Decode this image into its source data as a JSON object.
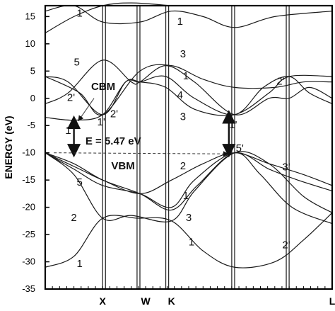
{
  "chart_data": {
    "type": "line",
    "ylabel": "ENERGY (eV)",
    "ylim": [
      -35,
      17
    ],
    "yticks": [
      15,
      10,
      5,
      0,
      -5,
      -10,
      -15,
      -20,
      -25,
      -30,
      -35
    ],
    "xlim": [
      0,
      1
    ],
    "xticks": [
      {
        "label": "X",
        "x": 0.2
      },
      {
        "label": "W",
        "x": 0.35
      },
      {
        "label": "K",
        "x": 0.44
      },
      {
        "label": "L",
        "x": 1.0
      }
    ],
    "symmetry_lines_x": [
      0.2,
      0.21,
      0.32,
      0.33,
      0.42,
      0.43,
      0.65,
      0.66,
      0.84,
      0.85
    ],
    "series": [
      {
        "values": [
          [
            0,
            -31
          ],
          [
            0.1,
            -29
          ],
          [
            0.2,
            -22
          ],
          [
            0.32,
            -22
          ],
          [
            0.44,
            -22.5
          ],
          [
            0.55,
            -28
          ],
          [
            0.66,
            -31
          ],
          [
            0.8,
            -30
          ],
          [
            0.9,
            -26
          ],
          [
            1.0,
            -21
          ]
        ]
      },
      {
        "values": [
          [
            0,
            -10
          ],
          [
            0.1,
            -14
          ],
          [
            0.2,
            -22
          ],
          [
            0.3,
            -21.5
          ],
          [
            0.44,
            -22.5
          ],
          [
            0.52,
            -17
          ],
          [
            0.66,
            -10
          ],
          [
            0.78,
            -12
          ],
          [
            0.9,
            -18
          ],
          [
            1.0,
            -21
          ]
        ]
      },
      {
        "values": [
          [
            0,
            -10
          ],
          [
            0.12,
            -13
          ],
          [
            0.2,
            -15
          ],
          [
            0.33,
            -17.5
          ],
          [
            0.44,
            -15
          ],
          [
            0.55,
            -12
          ],
          [
            0.66,
            -10
          ],
          [
            0.78,
            -12
          ],
          [
            0.9,
            -14
          ],
          [
            1.0,
            -16
          ]
        ]
      },
      {
        "values": [
          [
            0,
            -10
          ],
          [
            0.1,
            -13
          ],
          [
            0.2,
            -16
          ],
          [
            0.33,
            -17.5
          ],
          [
            0.44,
            -20
          ],
          [
            0.52,
            -15
          ],
          [
            0.66,
            -10
          ],
          [
            0.78,
            -13
          ],
          [
            0.88,
            -15
          ],
          [
            1.0,
            -17
          ]
        ]
      },
      {
        "values": [
          [
            0,
            -10
          ],
          [
            0.1,
            -12
          ],
          [
            0.2,
            -15
          ],
          [
            0.33,
            -17.5
          ],
          [
            0.44,
            -20.5
          ],
          [
            0.53,
            -16
          ],
          [
            0.66,
            -10
          ],
          [
            0.75,
            -14
          ],
          [
            0.86,
            -20
          ],
          [
            1.0,
            -23
          ]
        ]
      },
      {
        "values": [
          [
            0,
            -3.5
          ],
          [
            0.1,
            -4
          ],
          [
            0.2,
            -3
          ],
          [
            0.28,
            3
          ],
          [
            0.33,
            3
          ],
          [
            0.42,
            2
          ],
          [
            0.52,
            -2
          ],
          [
            0.66,
            -3
          ],
          [
            0.78,
            1
          ],
          [
            0.85,
            4
          ],
          [
            1.0,
            4
          ]
        ]
      },
      {
        "values": [
          [
            0,
            -1
          ],
          [
            0.08,
            1
          ],
          [
            0.2,
            7
          ],
          [
            0.3,
            3
          ],
          [
            0.33,
            3
          ],
          [
            0.42,
            6
          ],
          [
            0.52,
            3
          ],
          [
            0.66,
            -3
          ],
          [
            0.78,
            0
          ],
          [
            0.85,
            0
          ],
          [
            0.92,
            2
          ],
          [
            1.0,
            0
          ]
        ]
      },
      {
        "values": [
          [
            0,
            4
          ],
          [
            0.08,
            3
          ],
          [
            0.2,
            -3
          ],
          [
            0.28,
            3
          ],
          [
            0.33,
            3
          ],
          [
            0.42,
            4
          ],
          [
            0.52,
            0
          ],
          [
            0.66,
            -3
          ],
          [
            0.76,
            2
          ],
          [
            0.85,
            4
          ],
          [
            0.92,
            1
          ],
          [
            1.0,
            -1
          ]
        ]
      },
      {
        "values": [
          [
            0,
            4
          ],
          [
            0.12,
            1
          ],
          [
            0.2,
            -3
          ],
          [
            0.33,
            5
          ],
          [
            0.44,
            6
          ],
          [
            0.55,
            3.5
          ],
          [
            0.66,
            2
          ],
          [
            0.8,
            2
          ],
          [
            0.9,
            3
          ],
          [
            1.0,
            3
          ]
        ]
      },
      {
        "values": [
          [
            0,
            16
          ],
          [
            0.1,
            17
          ],
          [
            0.2,
            14
          ],
          [
            0.33,
            14
          ],
          [
            0.44,
            16
          ],
          [
            0.55,
            15
          ],
          [
            0.66,
            13
          ],
          [
            0.8,
            15
          ],
          [
            1.0,
            16
          ]
        ]
      },
      {
        "values": [
          [
            0,
            12
          ],
          [
            0.1,
            15
          ],
          [
            0.2,
            17
          ],
          [
            0.3,
            17.5
          ],
          [
            0.44,
            17
          ]
        ]
      }
    ],
    "band_labels": [
      {
        "text": "1",
        "x": 0.12,
        "y": 15
      },
      {
        "text": "1",
        "x": 0.47,
        "y": 13.5
      },
      {
        "text": "5",
        "x": 0.11,
        "y": 6
      },
      {
        "text": "3",
        "x": 0.48,
        "y": 7.5
      },
      {
        "text": "1",
        "x": 0.49,
        "y": 3.5
      },
      {
        "text": "2'",
        "x": 0.09,
        "y": -0.5
      },
      {
        "text": "4",
        "x": 0.47,
        "y": 0
      },
      {
        "text": "3",
        "x": 0.48,
        "y": -4
      },
      {
        "text": "1",
        "x": 0.08,
        "y": -6.5
      },
      {
        "text": "2",
        "x": 0.48,
        "y": -13
      },
      {
        "text": "5",
        "x": 0.12,
        "y": -16
      },
      {
        "text": "1",
        "x": 0.49,
        "y": -18.5
      },
      {
        "text": "2",
        "x": 0.1,
        "y": -22.5
      },
      {
        "text": "3",
        "x": 0.5,
        "y": -22.5
      },
      {
        "text": "1",
        "x": 0.51,
        "y": -27
      },
      {
        "text": "1",
        "x": 0.12,
        "y": -31
      }
    ],
    "point_labels": [
      {
        "text": "1'",
        "x": 0.195,
        "y": -5
      },
      {
        "text": "2'",
        "x": 0.24,
        "y": -3.5
      },
      {
        "text": "5'",
        "x": 0.678,
        "y": -9.8
      },
      {
        "text": "1'",
        "x": 0.655,
        "y": -5.5
      },
      {
        "text": "2'",
        "x": 0.82,
        "y": 2.5
      },
      {
        "text": "3'",
        "x": 0.84,
        "y": -13.2
      },
      {
        "text": "2'",
        "x": 0.84,
        "y": -27.5
      }
    ],
    "annotations": [
      {
        "text": "CBM",
        "x": 0.16,
        "y": 1.5
      },
      {
        "text": "VBM",
        "x": 0.23,
        "y": -13
      },
      {
        "text": "E = 5.47 eV",
        "x": 0.14,
        "y": -8.5
      }
    ],
    "gap_arrows": [
      {
        "x": 0.1,
        "y1": -4,
        "y2": -10
      },
      {
        "x": 0.64,
        "y1": -3,
        "y2": -10
      }
    ]
  }
}
